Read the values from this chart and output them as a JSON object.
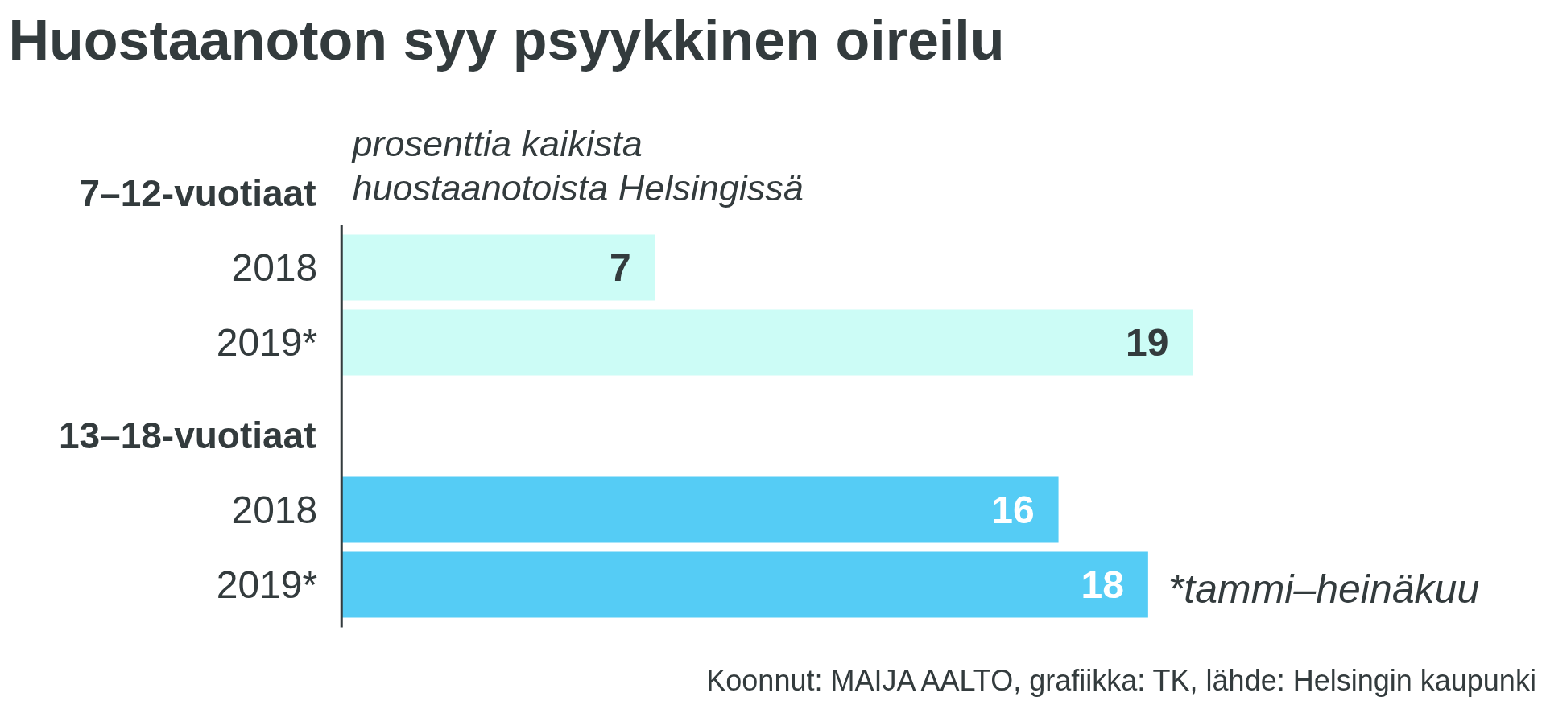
{
  "chart_data": {
    "type": "bar",
    "orientation": "horizontal",
    "title": "Huostaanoton syy psyykkinen oireilu",
    "subtitle": "prosenttia kaikista\nhuostaanotoista Helsingissä",
    "categories": [
      "7–12-vuotiaat",
      "2018",
      "2019*",
      "13–18-vuotiaat",
      "2018",
      "2019*"
    ],
    "values": [
      null,
      7,
      19,
      null,
      16,
      18
    ],
    "colors": [
      null,
      "#ccfcf6",
      "#ccfcf6",
      null,
      "#55ccf5",
      "#55ccf5"
    ],
    "data_labels": true,
    "annotations": [
      "*tammi–heinäkuu",
      "Koonnut: MAIJA AALTO, grafiikka: TK, lähde: Helsingin kaupunki"
    ]
  }
}
